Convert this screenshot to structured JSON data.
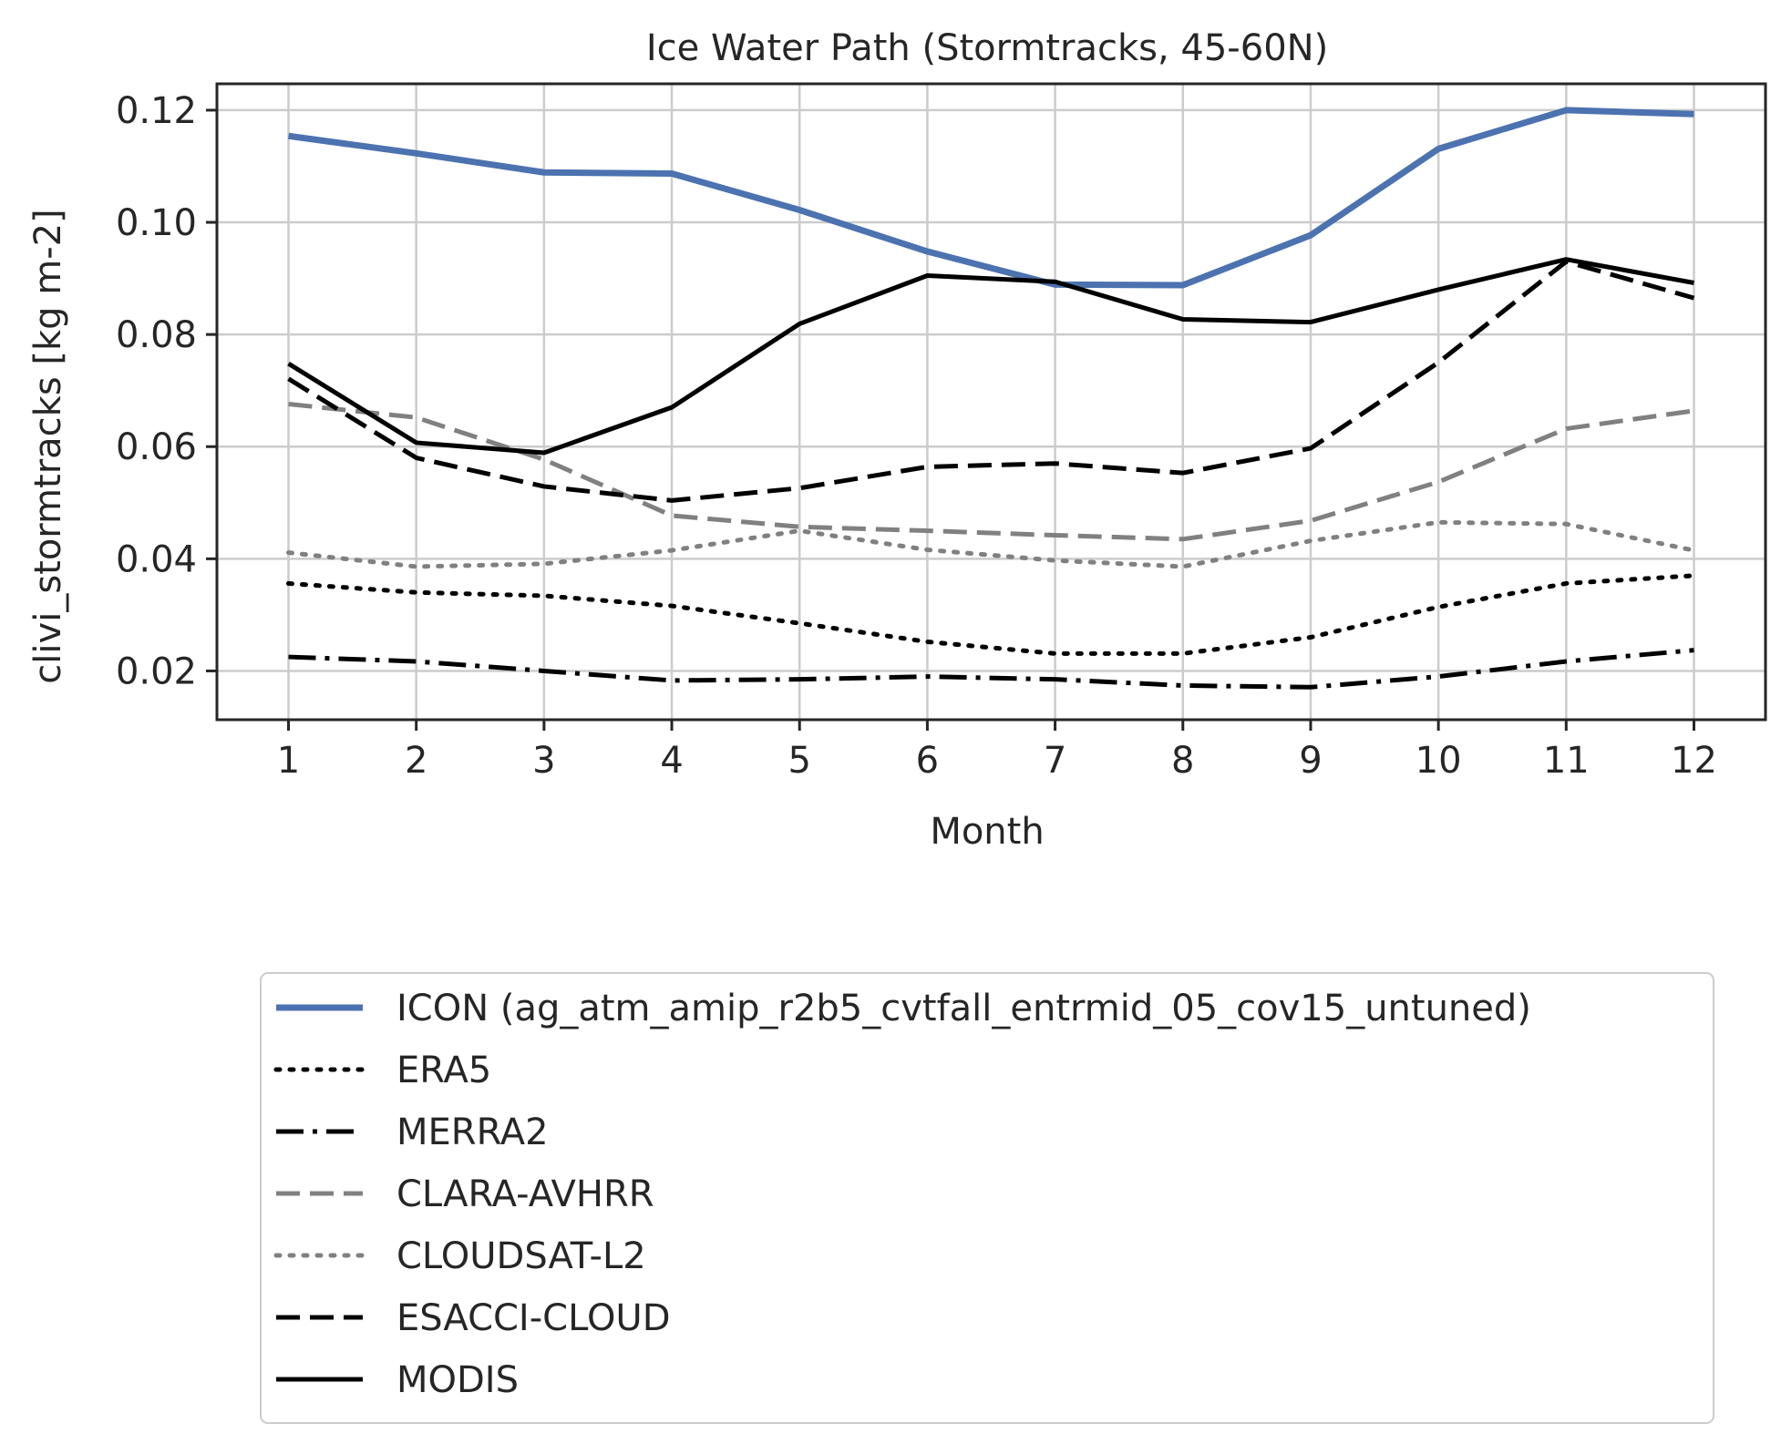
{
  "chart_data": {
    "type": "line",
    "title": "Ice Water Path (Stormtracks, 45-60N)",
    "xlabel": "Month",
    "ylabel": "clivi_stormtracks [kg m-2]",
    "x": [
      1,
      2,
      3,
      4,
      5,
      6,
      7,
      8,
      9,
      10,
      11,
      12
    ],
    "xlim": [
      0.44,
      12.56
    ],
    "ylim": [
      0.0113,
      0.1247
    ],
    "xticks": [
      "1",
      "2",
      "3",
      "4",
      "5",
      "6",
      "7",
      "8",
      "9",
      "10",
      "11",
      "12"
    ],
    "yticks": [
      0.02,
      0.04,
      0.06,
      0.08,
      0.1,
      0.12
    ],
    "ytick_labels": [
      "0.02",
      "0.04",
      "0.06",
      "0.08",
      "0.10",
      "0.12"
    ],
    "grid": true,
    "legend_position": "below-center",
    "series": [
      {
        "name": "ICON (ag_atm_amip_r2b5_cvtfall_entrmid_05_cov15_untuned)",
        "color": "#4c72b0",
        "style": "solid",
        "width": "thick",
        "values": [
          0.1154,
          0.1123,
          0.1089,
          0.1087,
          0.1022,
          0.0948,
          0.0889,
          0.0888,
          0.0977,
          0.1131,
          0.12,
          0.1193
        ]
      },
      {
        "name": "ERA5",
        "color": "#000000",
        "style": "dotted",
        "values": [
          0.0356,
          0.034,
          0.0334,
          0.0316,
          0.0285,
          0.0252,
          0.0231,
          0.0231,
          0.026,
          0.0314,
          0.0356,
          0.037
        ]
      },
      {
        "name": "MERRA2",
        "color": "#000000",
        "style": "dashdot",
        "values": [
          0.0225,
          0.0217,
          0.02,
          0.0183,
          0.0185,
          0.019,
          0.0185,
          0.0174,
          0.0171,
          0.019,
          0.0217,
          0.0237
        ]
      },
      {
        "name": "CLARA-AVHRR",
        "color": "#808080",
        "style": "dashed",
        "values": [
          0.0676,
          0.0652,
          0.0577,
          0.0477,
          0.0457,
          0.045,
          0.0442,
          0.0435,
          0.0468,
          0.0537,
          0.0632,
          0.0664
        ]
      },
      {
        "name": "CLOUDSAT-L2",
        "color": "#808080",
        "style": "dotted",
        "values": [
          0.0411,
          0.0386,
          0.0391,
          0.0415,
          0.045,
          0.0416,
          0.0397,
          0.0386,
          0.0432,
          0.0465,
          0.0462,
          0.0415
        ]
      },
      {
        "name": "ESACCI-CLOUD",
        "color": "#000000",
        "style": "dashed",
        "values": [
          0.0721,
          0.058,
          0.0529,
          0.0504,
          0.0526,
          0.0564,
          0.057,
          0.0553,
          0.0597,
          0.075,
          0.093,
          0.0865
        ]
      },
      {
        "name": "MODIS",
        "color": "#000000",
        "style": "solid",
        "values": [
          0.0748,
          0.0607,
          0.0589,
          0.067,
          0.0819,
          0.0905,
          0.0894,
          0.0827,
          0.0822,
          0.088,
          0.0934,
          0.0892
        ]
      }
    ]
  }
}
